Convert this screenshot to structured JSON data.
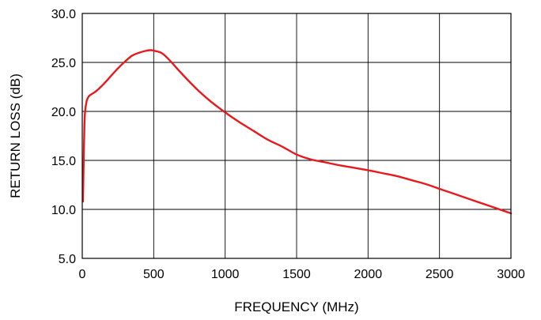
{
  "chart_data": {
    "type": "line",
    "title": "",
    "xlabel": "FREQUENCY (MHz)",
    "ylabel": "RETURN LOSS (dB)",
    "xlim": [
      0,
      3000
    ],
    "ylim": [
      5.0,
      30.0
    ],
    "x_ticks": [
      "0",
      "500",
      "1000",
      "1500",
      "2000",
      "2500",
      "3000"
    ],
    "y_ticks": [
      "5.0",
      "10.0",
      "15.0",
      "20.0",
      "25.0",
      "30.0"
    ],
    "x_tick_values": [
      0,
      500,
      1000,
      1500,
      2000,
      2500,
      3000
    ],
    "y_tick_values": [
      5,
      10,
      15,
      20,
      25,
      30
    ],
    "grid": true,
    "legend": "none",
    "series": [
      {
        "color": "#e8191c",
        "x": [
          5,
          10,
          15,
          20,
          30,
          40,
          50,
          70,
          100,
          150,
          200,
          250,
          300,
          350,
          400,
          450,
          480,
          500,
          550,
          600,
          700,
          800,
          900,
          1000,
          1100,
          1200,
          1300,
          1400,
          1500,
          1600,
          1700,
          1800,
          1900,
          2000,
          2100,
          2200,
          2300,
          2400,
          2500,
          2600,
          2700,
          2800,
          2900,
          3000
        ],
        "y": [
          10.8,
          15.0,
          18.5,
          20.0,
          21.0,
          21.4,
          21.6,
          21.8,
          22.1,
          22.8,
          23.6,
          24.4,
          25.1,
          25.7,
          26.0,
          26.2,
          26.25,
          26.2,
          26.0,
          25.4,
          23.8,
          22.3,
          21.0,
          19.9,
          18.9,
          18.0,
          17.1,
          16.4,
          15.6,
          15.1,
          14.8,
          14.5,
          14.25,
          14.0,
          13.7,
          13.4,
          13.0,
          12.6,
          12.1,
          11.6,
          11.1,
          10.6,
          10.1,
          9.6
        ]
      }
    ]
  }
}
